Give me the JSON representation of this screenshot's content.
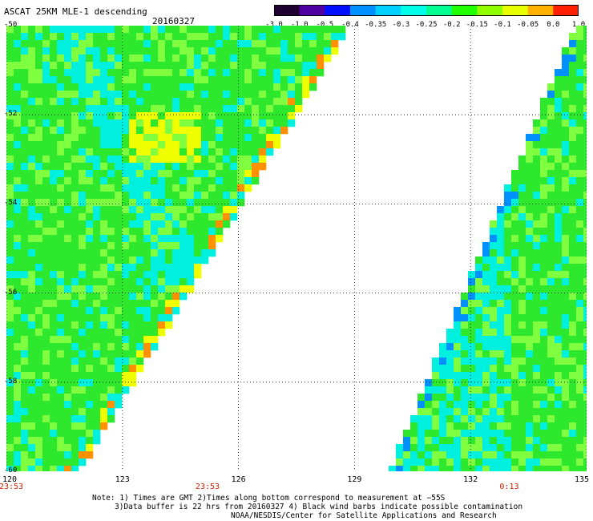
{
  "title": "ASCAT 25KM MLE-1 descending",
  "date": "20160327",
  "colorbar": {
    "labels": [
      "-3.0",
      "-1.0",
      "-0.5",
      "-0.4",
      "-0.35",
      "-0.3",
      "-0.25",
      "-0.2",
      "-0.15",
      "-0.1",
      "-0.05",
      "0.0",
      "1.0"
    ],
    "colors": [
      "#200030",
      "#5000a0",
      "#0010ff",
      "#0090ff",
      "#00d0ff",
      "#00ffe8",
      "#00ff90",
      "#20ff00",
      "#90ff00",
      "#e8ff00",
      "#ffb000",
      "#ff2000"
    ]
  },
  "map": {
    "lat_labels": [
      "-50",
      "-52",
      "-54",
      "-56",
      "-58",
      "-60"
    ],
    "lon_labels": [
      "120",
      "123",
      "126",
      "129",
      "132",
      "135"
    ],
    "times": [
      {
        "label": "23:53",
        "lon": 120
      },
      {
        "label": "23:53",
        "lon": 125.2
      },
      {
        "label": "0:13",
        "lon": 133
      }
    ],
    "colors": {
      "land_green": "#2ee82e",
      "cyan": "#00f0e0",
      "light_green": "#80ff40",
      "yellow": "#f0ff00",
      "orange": "#ff9000",
      "blue": "#0090ff"
    }
  },
  "notes": {
    "line1": "Note: 1) Times are GMT 2)Times along bottom correspond to measurement at −55S",
    "line2": "3)Data buffer is 22 hrs from 20160327 4) Black wind barbs indicate possible contamination",
    "line3": "NOAA/NESDIS/Center for Satellite Applications and Research"
  }
}
